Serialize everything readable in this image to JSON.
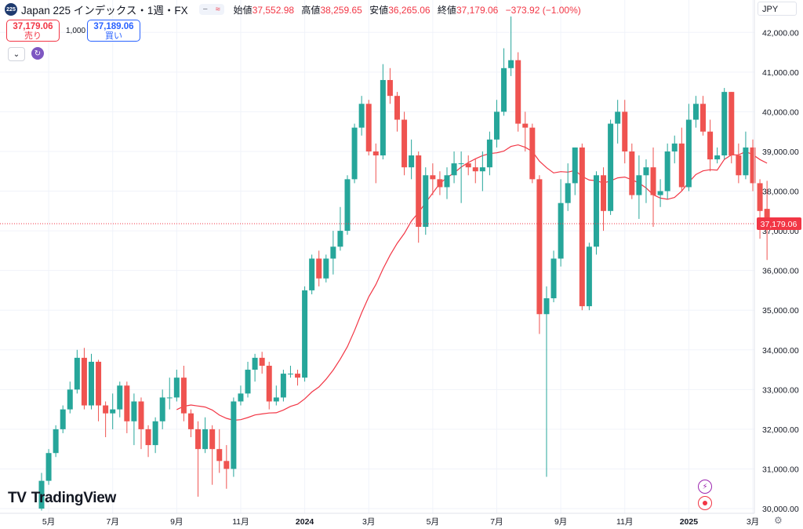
{
  "header": {
    "symbol_badge": "225",
    "title": "Japan 225 インデックス・1週・FX",
    "ohlc": [
      {
        "label": "始値",
        "value": "37,552.98"
      },
      {
        "label": "高値",
        "value": "38,259.65"
      },
      {
        "label": "安値",
        "value": "36,265.06"
      },
      {
        "label": "終値",
        "value": "37,179.06"
      }
    ],
    "change": "−373.92 (−1.00%)",
    "pill_icons": [
      "minus-icon",
      "wave-icon"
    ]
  },
  "trade": {
    "sell_price": "37,179.06",
    "sell_label": "売り",
    "quantity": "1,000",
    "buy_price": "37,189.06",
    "buy_label": "買い"
  },
  "currency": "JPY",
  "logo_text": "TradingView",
  "colors": {
    "up": "#26a69a",
    "down": "#ef5350",
    "ma": "#f23645",
    "price_label": "#f23645",
    "grid": "#f0f3fa"
  },
  "chart_data": {
    "type": "candlestick",
    "title": "Japan 225 インデックス・1週・FX",
    "ylim": [
      29900,
      42600
    ],
    "y_ticks": [
      "42,000.00",
      "41,000.00",
      "40,000.00",
      "39,000.00",
      "38,000.00",
      "37,000.00",
      "36,000.00",
      "35,000.00",
      "34,000.00",
      "33,000.00",
      "32,000.00",
      "31,000.00",
      "30,000.00"
    ],
    "y_tick_values": [
      42000,
      41000,
      40000,
      39000,
      38000,
      37000,
      36000,
      35000,
      34000,
      33000,
      32000,
      31000,
      30000
    ],
    "x_labels": [
      "5月",
      "7月",
      "9月",
      "11月",
      "2024",
      "3月",
      "5月",
      "7月",
      "9月",
      "11月",
      "2025",
      "3月"
    ],
    "x_label_index": [
      1,
      10,
      19,
      28,
      37,
      46,
      55,
      64,
      73,
      82,
      91,
      100
    ],
    "last_price_label": "37,179.06",
    "last_price": 37179.06,
    "grid": true,
    "moving_average": {
      "period": 20,
      "color": "#f23645"
    },
    "candles": [
      [
        30000,
        30700,
        29950,
        30900
      ],
      [
        30700,
        31400,
        30600,
        31500
      ],
      [
        31400,
        32000,
        31300,
        32100
      ],
      [
        32000,
        32500,
        31900,
        32600
      ],
      [
        32500,
        33000,
        32400,
        33200
      ],
      [
        33000,
        33800,
        32900,
        34000
      ],
      [
        33800,
        32600,
        32500,
        34050
      ],
      [
        32600,
        33700,
        32500,
        33900
      ],
      [
        33700,
        32600,
        32200,
        33750
      ],
      [
        32600,
        32400,
        31800,
        32700
      ],
      [
        32400,
        32500,
        32000,
        32900
      ],
      [
        32500,
        33100,
        32300,
        33200
      ],
      [
        33100,
        32200,
        31900,
        33200
      ],
      [
        32200,
        32700,
        31600,
        32900
      ],
      [
        32700,
        32000,
        31500,
        32800
      ],
      [
        32000,
        31600,
        31300,
        32100
      ],
      [
        31600,
        32200,
        31400,
        32300
      ],
      [
        32200,
        32800,
        32000,
        33000
      ],
      [
        32800,
        32800,
        32500,
        33300
      ],
      [
        32800,
        33300,
        32700,
        33500
      ],
      [
        33300,
        32400,
        32200,
        33600
      ],
      [
        32400,
        32000,
        31800,
        32500
      ],
      [
        32000,
        31500,
        30300,
        32200
      ],
      [
        31500,
        32000,
        31400,
        32300
      ],
      [
        32000,
        31500,
        30600,
        32100
      ],
      [
        31500,
        31200,
        30900,
        32000
      ],
      [
        31200,
        31000,
        30500,
        31600
      ],
      [
        31000,
        32700,
        30800,
        32800
      ],
      [
        32700,
        32900,
        32600,
        33100
      ],
      [
        32900,
        33500,
        32800,
        33700
      ],
      [
        33500,
        33800,
        33200,
        33900
      ],
      [
        33800,
        33600,
        33400,
        33950
      ],
      [
        33600,
        32700,
        32500,
        33700
      ],
      [
        32700,
        32800,
        32600,
        33100
      ],
      [
        32800,
        33400,
        32700,
        33500
      ],
      [
        33400,
        33400,
        33300,
        33600
      ],
      [
        33400,
        33300,
        33100,
        33500
      ],
      [
        33300,
        35500,
        33200,
        35600
      ],
      [
        35500,
        36300,
        35400,
        36400
      ],
      [
        36300,
        35800,
        35600,
        36500
      ],
      [
        35800,
        36300,
        35700,
        36400
      ],
      [
        36300,
        36600,
        35900,
        37000
      ],
      [
        36600,
        37000,
        36500,
        37600
      ],
      [
        37000,
        38300,
        36900,
        38400
      ],
      [
        38300,
        39600,
        38200,
        39700
      ],
      [
        39600,
        40200,
        39400,
        40400
      ],
      [
        40200,
        39000,
        38900,
        40300
      ],
      [
        39000,
        38900,
        38200,
        39200
      ],
      [
        38900,
        40800,
        38800,
        41200
      ],
      [
        40800,
        40400,
        40200,
        41100
      ],
      [
        40400,
        39800,
        39500,
        40500
      ],
      [
        39800,
        38600,
        38400,
        40000
      ],
      [
        38600,
        38900,
        38300,
        39300
      ],
      [
        38900,
        37100,
        36700,
        39000
      ],
      [
        37100,
        38400,
        36900,
        38600
      ],
      [
        38400,
        38300,
        37900,
        38700
      ],
      [
        38300,
        38100,
        37900,
        38500
      ],
      [
        38100,
        38400,
        37800,
        38600
      ],
      [
        38400,
        38700,
        38200,
        39000
      ],
      [
        38700,
        38700,
        37700,
        39000
      ],
      [
        38700,
        38600,
        38400,
        38900
      ],
      [
        38600,
        38500,
        38200,
        38800
      ],
      [
        38500,
        38600,
        38000,
        39000
      ],
      [
        38600,
        39300,
        38400,
        39500
      ],
      [
        39300,
        40000,
        39100,
        40300
      ],
      [
        40000,
        41100,
        39900,
        41600
      ],
      [
        41100,
        41300,
        40900,
        42400
      ],
      [
        41300,
        39700,
        39500,
        41500
      ],
      [
        39700,
        39600,
        39000,
        40000
      ],
      [
        39600,
        38300,
        38200,
        39700
      ],
      [
        38300,
        34900,
        34400,
        38400
      ],
      [
        34900,
        35300,
        30800,
        35600
      ],
      [
        35300,
        36300,
        35200,
        36500
      ],
      [
        36300,
        37700,
        36100,
        38300
      ],
      [
        37700,
        38200,
        37500,
        38700
      ],
      [
        38200,
        39100,
        37900,
        39100
      ],
      [
        39100,
        35100,
        35000,
        39200
      ],
      [
        35100,
        36600,
        35000,
        36700
      ],
      [
        36600,
        38400,
        36400,
        38500
      ],
      [
        38400,
        37500,
        37000,
        38600
      ],
      [
        37500,
        39700,
        37400,
        39800
      ],
      [
        39700,
        40000,
        39200,
        40300
      ],
      [
        40000,
        39000,
        38700,
        40300
      ],
      [
        39000,
        37900,
        37800,
        39200
      ],
      [
        37900,
        38400,
        37300,
        38900
      ],
      [
        38400,
        38600,
        37700,
        38800
      ],
      [
        38600,
        37900,
        37100,
        39100
      ],
      [
        37900,
        38000,
        37600,
        38300
      ],
      [
        38000,
        39000,
        37800,
        39200
      ],
      [
        39000,
        39200,
        38700,
        39400
      ],
      [
        39200,
        38100,
        38000,
        39600
      ],
      [
        38100,
        39800,
        38000,
        40200
      ],
      [
        39800,
        40200,
        39600,
        40400
      ],
      [
        40200,
        39500,
        39400,
        40400
      ],
      [
        39500,
        38800,
        38500,
        39800
      ],
      [
        38800,
        38900,
        38700,
        39100
      ],
      [
        38900,
        40500,
        38800,
        40600
      ],
      [
        40500,
        38900,
        38700,
        40500
      ],
      [
        38900,
        38400,
        38200,
        39200
      ],
      [
        38400,
        39100,
        38300,
        39500
      ],
      [
        39100,
        38200,
        38000,
        39300
      ],
      [
        38200,
        37500,
        36800,
        38300
      ],
      [
        37552.98,
        37179.06,
        36265.06,
        38259.65
      ]
    ]
  }
}
